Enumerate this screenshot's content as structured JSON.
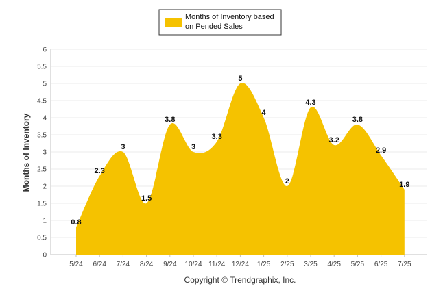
{
  "chart_data": {
    "type": "area",
    "categories": [
      "5/24",
      "6/24",
      "7/24",
      "8/24",
      "9/24",
      "10/24",
      "11/24",
      "12/24",
      "1/25",
      "2/25",
      "3/25",
      "4/25",
      "5/25",
      "6/25",
      "7/25"
    ],
    "series": [
      {
        "name": "Months of Inventory based on Pended Sales",
        "values": [
          0.8,
          2.3,
          3,
          1.5,
          3.8,
          3,
          3.3,
          5,
          4,
          2,
          4.3,
          3.2,
          3.8,
          2.9,
          1.9
        ]
      }
    ],
    "data_labels": [
      "0.8",
      "2.3",
      "3",
      "1.5",
      "3.8",
      "3",
      "3.3",
      "5",
      "4",
      "2",
      "4.3",
      "3.2",
      "3.8",
      "2.9",
      "1.9"
    ],
    "title": "",
    "xlabel": "",
    "ylabel": "Months of Inventory",
    "ylim": [
      0,
      6
    ],
    "yticks": [
      "0",
      "0.5",
      "1",
      "1.5",
      "2",
      "2.5",
      "3",
      "3.5",
      "4",
      "4.5",
      "5",
      "5.5",
      "6"
    ],
    "grid": true,
    "legend_position": "top-center",
    "colors": {
      "area_fill": "#F5C200",
      "legend_swatch": "#F5C200",
      "grid": "#EBEBEB",
      "axis": "#C0C0C0"
    }
  },
  "legend": {
    "line1": "Months of Inventory based",
    "line2": "on Pended Sales"
  },
  "footer": {
    "copyright": "Copyright © Trendgraphix, Inc."
  }
}
